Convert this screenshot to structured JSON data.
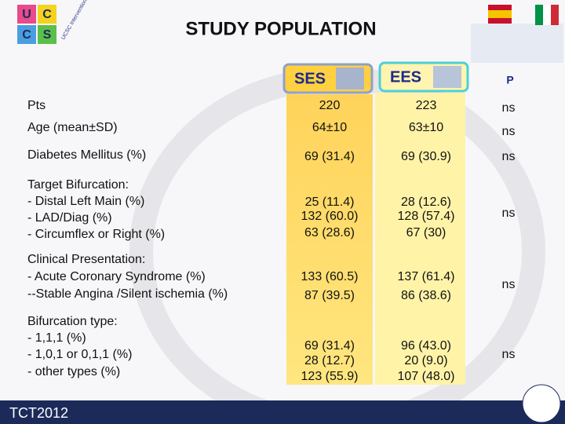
{
  "header": {
    "title": "STUDY POPULATION",
    "logo_text": "UCSC Interventional Cardiology",
    "logo_letters": [
      "U",
      "C",
      "C",
      "S"
    ]
  },
  "table": {
    "columns": [
      "SES",
      "EES",
      "P"
    ],
    "rows": [
      {
        "label": [
          "Pts"
        ],
        "ses": [
          "220"
        ],
        "ees": [
          "223"
        ],
        "p": "ns"
      },
      {
        "label": [
          "Age (mean±SD)"
        ],
        "ses": [
          "64±10"
        ],
        "ees": [
          "63±10"
        ],
        "p": "ns"
      },
      {
        "label": [
          "Diabetes Mellitus (%)"
        ],
        "ses": [
          "69 (31.4)"
        ],
        "ees": [
          "69 (30.9)"
        ],
        "p": "ns"
      },
      {
        "label": [
          "Target Bifurcation:",
          "- Distal Left Main (%)",
          "- LAD/Diag (%)",
          "- Circumflex or Right (%)"
        ],
        "ses": [
          "25 (11.4)",
          "132 (60.0)",
          "63 (28.6)"
        ],
        "ees": [
          "28 (12.6)",
          "128 (57.4)",
          "67 (30)"
        ],
        "p": "ns"
      },
      {
        "label": [
          "Clinical Presentation:",
          "- Acute Coronary Syndrome (%)",
          "--Stable Angina /Silent ischemia (%)"
        ],
        "ses": [
          "133 (60.5)",
          "87 (39.5)"
        ],
        "ees": [
          "137 (61.4)",
          "86 (38.6)"
        ],
        "p": "ns"
      },
      {
        "label": [
          "Bifurcation type:",
          "- 1,1,1 (%)",
          "- 1,0,1 or 0,1,1 (%)",
          "- other types (%)"
        ],
        "ses": [
          "69 (31.4)",
          "28 (12.7)",
          "123 (55.9)"
        ],
        "ees": [
          "96 (43.0)",
          "20 (9.0)",
          "107 (48.0)"
        ],
        "p": "ns"
      }
    ]
  },
  "footer": {
    "text": "TCT2012"
  }
}
